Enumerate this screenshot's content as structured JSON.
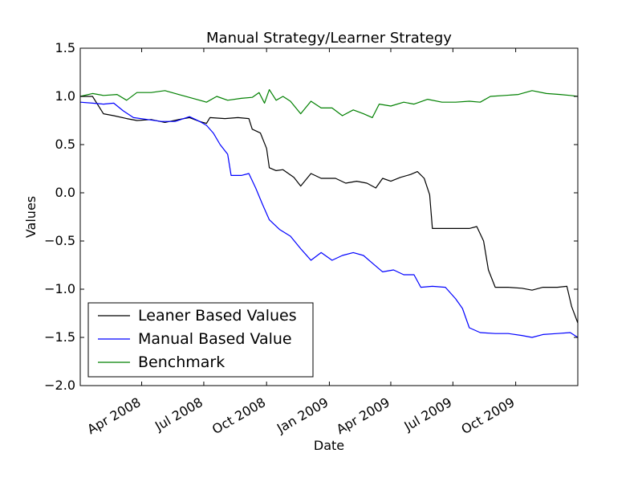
{
  "chart_data": {
    "type": "line",
    "title": "Manual Strategy/Learner Strategy",
    "xlabel": "Date",
    "ylabel": "Values",
    "xlim": [
      "2008-01-02",
      "2009-12-31"
    ],
    "ylim": [
      -2.0,
      1.5
    ],
    "y_ticks": [
      {
        "value": 1.5,
        "label": "1.5"
      },
      {
        "value": 1.0,
        "label": "1.0"
      },
      {
        "value": 0.5,
        "label": "0.5"
      },
      {
        "value": 0.0,
        "label": "0.0"
      },
      {
        "value": -0.5,
        "label": "−0.5"
      },
      {
        "value": -1.0,
        "label": "−1.0"
      },
      {
        "value": -1.5,
        "label": "−1.5"
      },
      {
        "value": -2.0,
        "label": "−2.0"
      }
    ],
    "x_ticks": [
      {
        "date": "2008-04-01",
        "label": "Apr 2008"
      },
      {
        "date": "2008-07-01",
        "label": "Jul 2008"
      },
      {
        "date": "2008-10-01",
        "label": "Oct 2008"
      },
      {
        "date": "2009-01-01",
        "label": "Jan 2009"
      },
      {
        "date": "2009-04-01",
        "label": "Apr 2009"
      },
      {
        "date": "2009-07-01",
        "label": "Jul 2009"
      },
      {
        "date": "2009-10-01",
        "label": "Oct 2009"
      }
    ],
    "grid": false,
    "legend_position": "lower-left",
    "series": [
      {
        "name": "Leaner Based Values",
        "color": "#000000",
        "points": [
          [
            "2008-01-02",
            1.0
          ],
          [
            "2008-01-20",
            1.0
          ],
          [
            "2008-02-05",
            0.82
          ],
          [
            "2008-02-20",
            0.8
          ],
          [
            "2008-03-10",
            0.77
          ],
          [
            "2008-03-25",
            0.75
          ],
          [
            "2008-04-15",
            0.76
          ],
          [
            "2008-05-05",
            0.73
          ],
          [
            "2008-05-25",
            0.76
          ],
          [
            "2008-06-10",
            0.78
          ],
          [
            "2008-06-25",
            0.74
          ],
          [
            "2008-07-05",
            0.72
          ],
          [
            "2008-07-10",
            0.78
          ],
          [
            "2008-08-01",
            0.77
          ],
          [
            "2008-08-20",
            0.78
          ],
          [
            "2008-09-05",
            0.77
          ],
          [
            "2008-09-10",
            0.66
          ],
          [
            "2008-09-22",
            0.62
          ],
          [
            "2008-10-01",
            0.46
          ],
          [
            "2008-10-05",
            0.26
          ],
          [
            "2008-10-15",
            0.23
          ],
          [
            "2008-10-25",
            0.24
          ],
          [
            "2008-11-10",
            0.16
          ],
          [
            "2008-11-20",
            0.07
          ],
          [
            "2008-12-05",
            0.2
          ],
          [
            "2008-12-20",
            0.15
          ],
          [
            "2009-01-10",
            0.15
          ],
          [
            "2009-01-25",
            0.1
          ],
          [
            "2009-02-10",
            0.12
          ],
          [
            "2009-02-25",
            0.1
          ],
          [
            "2009-03-10",
            0.05
          ],
          [
            "2009-03-20",
            0.15
          ],
          [
            "2009-04-01",
            0.12
          ],
          [
            "2009-04-15",
            0.16
          ],
          [
            "2009-04-30",
            0.19
          ],
          [
            "2009-05-10",
            0.22
          ],
          [
            "2009-05-20",
            0.15
          ],
          [
            "2009-05-28",
            -0.02
          ],
          [
            "2009-06-01",
            -0.37
          ],
          [
            "2009-06-20",
            -0.37
          ],
          [
            "2009-07-05",
            -0.37
          ],
          [
            "2009-07-25",
            -0.37
          ],
          [
            "2009-08-05",
            -0.35
          ],
          [
            "2009-08-15",
            -0.5
          ],
          [
            "2009-08-22",
            -0.8
          ],
          [
            "2009-09-01",
            -0.98
          ],
          [
            "2009-09-20",
            -0.98
          ],
          [
            "2009-10-10",
            -0.99
          ],
          [
            "2009-10-25",
            -1.01
          ],
          [
            "2009-11-10",
            -0.98
          ],
          [
            "2009-12-01",
            -0.98
          ],
          [
            "2009-12-15",
            -0.97
          ],
          [
            "2009-12-22",
            -1.18
          ],
          [
            "2009-12-31",
            -1.35
          ]
        ]
      },
      {
        "name": "Manual Based Value",
        "color": "#0000ff",
        "points": [
          [
            "2008-01-02",
            0.94
          ],
          [
            "2008-01-20",
            0.93
          ],
          [
            "2008-02-05",
            0.92
          ],
          [
            "2008-02-20",
            0.93
          ],
          [
            "2008-03-05",
            0.85
          ],
          [
            "2008-03-20",
            0.78
          ],
          [
            "2008-04-10",
            0.76
          ],
          [
            "2008-04-30",
            0.74
          ],
          [
            "2008-05-20",
            0.74
          ],
          [
            "2008-06-10",
            0.79
          ],
          [
            "2008-06-25",
            0.74
          ],
          [
            "2008-07-05",
            0.7
          ],
          [
            "2008-07-15",
            0.62
          ],
          [
            "2008-07-25",
            0.5
          ],
          [
            "2008-08-05",
            0.4
          ],
          [
            "2008-08-10",
            0.18
          ],
          [
            "2008-08-25",
            0.18
          ],
          [
            "2008-09-05",
            0.2
          ],
          [
            "2008-09-15",
            0.05
          ],
          [
            "2008-09-25",
            -0.12
          ],
          [
            "2008-10-05",
            -0.28
          ],
          [
            "2008-10-20",
            -0.38
          ],
          [
            "2008-11-05",
            -0.45
          ],
          [
            "2008-11-20",
            -0.58
          ],
          [
            "2008-12-05",
            -0.7
          ],
          [
            "2008-12-20",
            -0.62
          ],
          [
            "2009-01-05",
            -0.7
          ],
          [
            "2009-01-20",
            -0.65
          ],
          [
            "2009-02-05",
            -0.62
          ],
          [
            "2009-02-20",
            -0.65
          ],
          [
            "2009-03-05",
            -0.73
          ],
          [
            "2009-03-20",
            -0.82
          ],
          [
            "2009-04-05",
            -0.8
          ],
          [
            "2009-04-20",
            -0.85
          ],
          [
            "2009-05-05",
            -0.85
          ],
          [
            "2009-05-15",
            -0.98
          ],
          [
            "2009-06-01",
            -0.97
          ],
          [
            "2009-06-20",
            -0.98
          ],
          [
            "2009-07-05",
            -1.1
          ],
          [
            "2009-07-15",
            -1.2
          ],
          [
            "2009-07-25",
            -1.4
          ],
          [
            "2009-08-10",
            -1.45
          ],
          [
            "2009-09-01",
            -1.46
          ],
          [
            "2009-09-20",
            -1.46
          ],
          [
            "2009-10-10",
            -1.48
          ],
          [
            "2009-10-25",
            -1.5
          ],
          [
            "2009-11-10",
            -1.47
          ],
          [
            "2009-12-01",
            -1.46
          ],
          [
            "2009-12-20",
            -1.45
          ],
          [
            "2009-12-31",
            -1.5
          ]
        ]
      },
      {
        "name": "Benchmark",
        "color": "#008000",
        "points": [
          [
            "2008-01-02",
            1.0
          ],
          [
            "2008-01-20",
            1.03
          ],
          [
            "2008-02-05",
            1.01
          ],
          [
            "2008-02-25",
            1.02
          ],
          [
            "2008-03-10",
            0.96
          ],
          [
            "2008-03-25",
            1.04
          ],
          [
            "2008-04-15",
            1.04
          ],
          [
            "2008-05-05",
            1.06
          ],
          [
            "2008-05-25",
            1.02
          ],
          [
            "2008-06-15",
            0.98
          ],
          [
            "2008-07-05",
            0.94
          ],
          [
            "2008-07-20",
            1.0
          ],
          [
            "2008-08-05",
            0.96
          ],
          [
            "2008-08-25",
            0.98
          ],
          [
            "2008-09-10",
            0.99
          ],
          [
            "2008-09-20",
            1.04
          ],
          [
            "2008-09-28",
            0.93
          ],
          [
            "2008-10-05",
            1.07
          ],
          [
            "2008-10-15",
            0.96
          ],
          [
            "2008-10-25",
            1.0
          ],
          [
            "2008-11-05",
            0.95
          ],
          [
            "2008-11-20",
            0.82
          ],
          [
            "2008-12-05",
            0.95
          ],
          [
            "2008-12-20",
            0.88
          ],
          [
            "2009-01-05",
            0.88
          ],
          [
            "2009-01-20",
            0.8
          ],
          [
            "2009-02-05",
            0.86
          ],
          [
            "2009-02-20",
            0.82
          ],
          [
            "2009-03-05",
            0.78
          ],
          [
            "2009-03-15",
            0.92
          ],
          [
            "2009-04-01",
            0.9
          ],
          [
            "2009-04-20",
            0.94
          ],
          [
            "2009-05-05",
            0.92
          ],
          [
            "2009-05-25",
            0.97
          ],
          [
            "2009-06-15",
            0.94
          ],
          [
            "2009-07-05",
            0.94
          ],
          [
            "2009-07-25",
            0.95
          ],
          [
            "2009-08-10",
            0.94
          ],
          [
            "2009-08-25",
            1.0
          ],
          [
            "2009-09-15",
            1.01
          ],
          [
            "2009-10-05",
            1.02
          ],
          [
            "2009-10-25",
            1.06
          ],
          [
            "2009-11-15",
            1.03
          ],
          [
            "2009-12-05",
            1.02
          ],
          [
            "2009-12-20",
            1.01
          ],
          [
            "2009-12-31",
            1.0
          ]
        ]
      }
    ]
  }
}
